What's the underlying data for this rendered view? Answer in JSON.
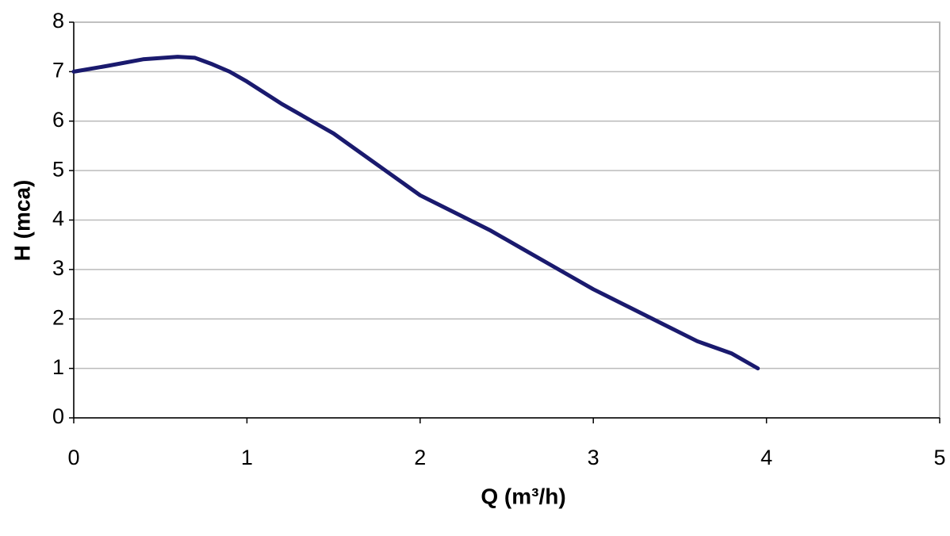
{
  "chart_data": {
    "type": "line",
    "x_label": "Q (m³/h)",
    "y_label": "H (mca)",
    "x": [
      0,
      0.2,
      0.4,
      0.6,
      0.7,
      0.8,
      0.9,
      1.0,
      1.2,
      1.4,
      1.5,
      1.6,
      1.8,
      2.0,
      2.2,
      2.4,
      2.6,
      2.8,
      3.0,
      3.2,
      3.4,
      3.6,
      3.8,
      3.95
    ],
    "series": [
      {
        "color": "#1a1a6e",
        "values": [
          7.0,
          7.12,
          7.25,
          7.3,
          7.28,
          7.15,
          7.0,
          6.8,
          6.35,
          5.95,
          5.75,
          5.5,
          5.0,
          4.5,
          4.15,
          3.8,
          3.4,
          3.0,
          2.6,
          2.25,
          1.9,
          1.55,
          1.3,
          1.0
        ]
      }
    ],
    "xlim": [
      0,
      5
    ],
    "xticks": [
      0,
      1,
      2,
      3,
      4,
      5
    ],
    "ylim": [
      0,
      8
    ],
    "yticks": [
      0,
      1,
      2,
      3,
      4,
      5,
      6,
      7,
      8
    ],
    "grid": true
  }
}
